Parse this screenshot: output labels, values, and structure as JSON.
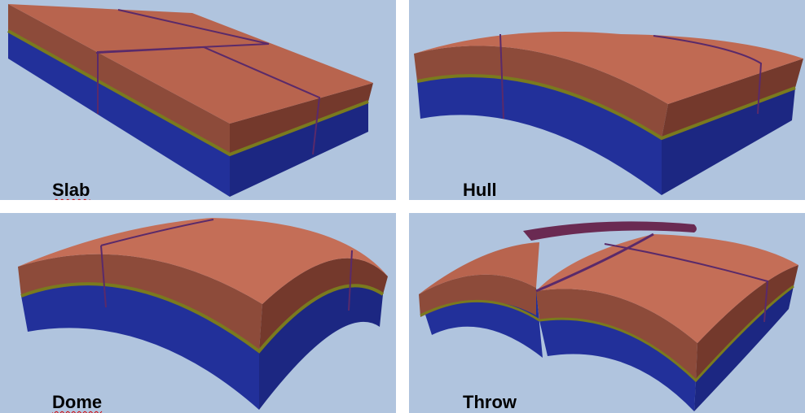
{
  "panels": [
    {
      "id": "slab",
      "label": "Slab",
      "spellcheck": true
    },
    {
      "id": "hull",
      "label": "Hull",
      "spellcheck": false
    },
    {
      "id": "dome",
      "label": "Dome",
      "spellcheck": true
    },
    {
      "id": "throw",
      "label": "Throw",
      "spellcheck": false
    }
  ],
  "colors": {
    "background": "#b0c4de",
    "top_surface": "#c46e57",
    "top_surface_shadow": "#a4543f",
    "side_upper": "#8c4a3a",
    "side_upper_dark": "#6e3a2e",
    "horizon_line": "#7a7a1e",
    "side_lower": "#25309a",
    "side_lower_dark": "#1a237a",
    "fault_line": "#5a2a6a",
    "throw_block": "#6a2a52"
  }
}
